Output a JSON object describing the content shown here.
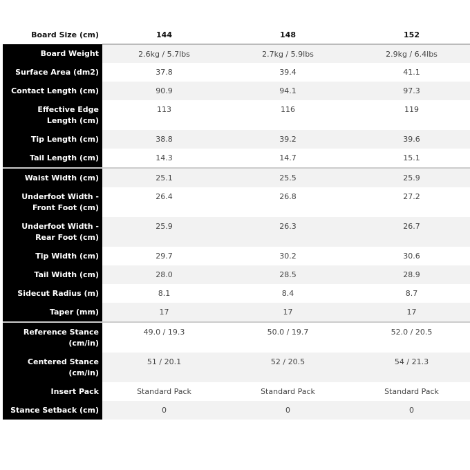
{
  "header": {
    "label": "Board Size (cm)",
    "sizes": [
      "144",
      "148",
      "152"
    ]
  },
  "rows": [
    {
      "label": "Board Weight",
      "values": [
        "2.6kg / 5.7lbs",
        "2.7kg / 5.9lbs",
        "2.9kg / 6.4lbs"
      ]
    },
    {
      "label": "Surface Area (dm2)",
      "values": [
        "37.8",
        "39.4",
        "41.1"
      ]
    },
    {
      "label": "Contact Length (cm)",
      "values": [
        "90.9",
        "94.1",
        "97.3"
      ]
    },
    {
      "label": "Effective Edge Length (cm)",
      "values": [
        "113",
        "116",
        "119"
      ]
    },
    {
      "label": "Tip Length (cm)",
      "values": [
        "38.8",
        "39.2",
        "39.6"
      ]
    },
    {
      "label": "Tail Length (cm)",
      "values": [
        "14.3",
        "14.7",
        "15.1"
      ]
    },
    {
      "label": "Waist Width (cm)",
      "values": [
        "25.1",
        "25.5",
        "25.9"
      ]
    },
    {
      "label": "Underfoot Width - Front Foot (cm)",
      "values": [
        "26.4",
        "26.8",
        "27.2"
      ]
    },
    {
      "label": "Underfoot Width - Rear Foot (cm)",
      "values": [
        "25.9",
        "26.3",
        "26.7"
      ]
    },
    {
      "label": "Tip Width (cm)",
      "values": [
        "29.7",
        "30.2",
        "30.6"
      ]
    },
    {
      "label": "Tail Width (cm)",
      "values": [
        "28.0",
        "28.5",
        "28.9"
      ]
    },
    {
      "label": "Sidecut Radius (m)",
      "values": [
        "8.1",
        "8.4",
        "8.7"
      ]
    },
    {
      "label": "Taper (mm)",
      "values": [
        "17",
        "17",
        "17"
      ]
    },
    {
      "label": "Reference Stance (cm/in)",
      "values": [
        "49.0 / 19.3",
        "50.0 / 19.7",
        "52.0 / 20.5"
      ]
    },
    {
      "label": "Centered Stance (cm/in)",
      "values": [
        "51 / 20.1",
        "52 / 20.5",
        "54 / 21.3"
      ]
    },
    {
      "label": "Insert Pack",
      "values": [
        "Standard Pack",
        "Standard Pack",
        "Standard Pack"
      ]
    },
    {
      "label": "Stance Setback (cm)",
      "values": [
        "0",
        "0",
        "0"
      ]
    }
  ]
}
